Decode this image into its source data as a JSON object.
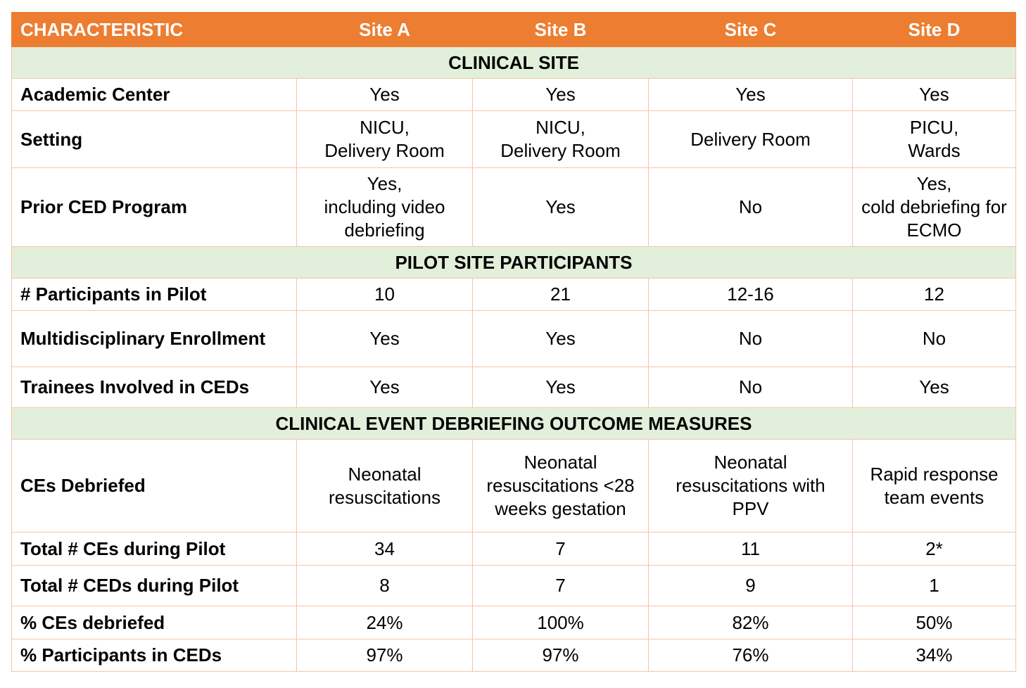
{
  "header": {
    "characteristic": "CHARACTERISTIC",
    "sites": [
      "Site A",
      "Site B",
      "Site C",
      "Site D"
    ]
  },
  "sections": {
    "clinical_site": {
      "title": "CLINICAL SITE",
      "rows": [
        {
          "label": "Academic Center",
          "values": [
            "Yes",
            "Yes",
            "Yes",
            "Yes"
          ]
        },
        {
          "label": "Setting",
          "values": [
            "NICU,\nDelivery Room",
            "NICU,\nDelivery Room",
            "Delivery Room",
            "PICU,\nWards"
          ]
        },
        {
          "label": "Prior CED Program",
          "values": [
            "Yes,\nincluding video\ndebriefing",
            "Yes",
            "No",
            "Yes,\ncold debriefing for\nECMO"
          ]
        }
      ]
    },
    "participants": {
      "title": "PILOT SITE PARTICIPANTS",
      "rows": [
        {
          "label": "# Participants in Pilot",
          "values": [
            "10",
            "21",
            "12-16",
            "12"
          ]
        },
        {
          "label": "Multidisciplinary Enrollment",
          "values": [
            "Yes",
            "Yes",
            "No",
            "No"
          ]
        },
        {
          "label": "Trainees Involved in CEDs",
          "values": [
            "Yes",
            "Yes",
            "No",
            "Yes"
          ]
        }
      ]
    },
    "outcomes": {
      "title": "CLINICAL EVENT DEBRIEFING OUTCOME MEASURES",
      "rows": [
        {
          "label": "CEs Debriefed",
          "values": [
            "Neonatal\nresuscitations",
            "Neonatal\nresuscitations <28\nweeks gestation",
            "Neonatal\nresuscitations with\nPPV",
            "Rapid response\nteam events"
          ]
        },
        {
          "label": "Total # CEs during Pilot",
          "values": [
            "34",
            "7",
            "11",
            "2*"
          ]
        },
        {
          "label": "Total # CEDs during Pilot",
          "values": [
            "8",
            "7",
            "9",
            "1"
          ]
        },
        {
          "label": "% CEs debriefed",
          "values": [
            "24%",
            "100%",
            "82%",
            "50%"
          ]
        },
        {
          "label": "% Participants in CEDs",
          "values": [
            "97%",
            "97%",
            "76%",
            "34%"
          ]
        }
      ]
    }
  },
  "colors": {
    "header_bg": "#ed7d31",
    "section_bg": "#e2efda",
    "border": "#f3c6a8"
  }
}
